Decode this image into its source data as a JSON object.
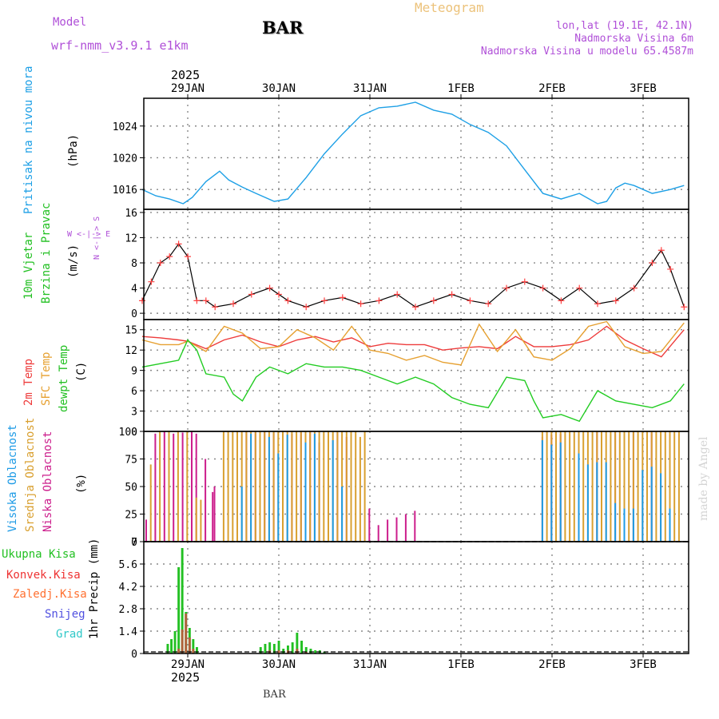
{
  "header": {
    "model_label": "Model",
    "model_name": "wrf-nmm_v3.9.1 e1km",
    "station": "BAR",
    "title": "Meteogram",
    "coords": "lon,lat (19.1E, 42.1N)",
    "elevation": "Nadmorska Visina 6m",
    "model_elevation": "Nadmorska Visina u modelu 65.4587m"
  },
  "footer": {
    "station": "BAR",
    "watermark": "made by Angel"
  },
  "colors": {
    "pressure": "#1ea0e6",
    "temp": "#ee3b3b",
    "sfc": "#e6a030",
    "dewpt": "#22cc22",
    "high_cloud": "#1e9be6",
    "mid_cloud": "#d9a030",
    "low_cloud": "#cc1e8c",
    "rain": "#22c022",
    "conv": "#ee3333",
    "snow": "#5050e0",
    "graupel": "#30c8c8",
    "wind_speed": "#ff4040"
  },
  "x_axis": {
    "top_year": "2025",
    "bottom_year": "2025",
    "dates": [
      "29JAN",
      "30JAN",
      "31JAN",
      "1FEB",
      "2FEB",
      "3FEB"
    ]
  },
  "panels": {
    "pressure": {
      "ylabel": "Pritisak na nivou mora",
      "unit": "(hPa)"
    },
    "wind": {
      "ylabel1": "10m Vjetar",
      "ylabel2": "Brzina i Pravac",
      "unit": "(m/s)",
      "compass": "W  <-|->  E",
      "compass_ns": "N  <-|->  S"
    },
    "temp": {
      "label1": "2m Temp",
      "label2": "SFC Temp",
      "label3": "dewpt Temp",
      "unit": "(C)"
    },
    "cloud": {
      "label1": "Visoka Oblacnost",
      "label2": "Srednja Oblacnost",
      "label3": "Niska Oblacnost",
      "unit": "(%)"
    },
    "precip": {
      "ylabel": "1hr Precip (mm)",
      "legend": [
        "Ukupna Kisa",
        "Konvek.Kisa",
        "Zaledj.Kisa",
        "Snijeg",
        "Grad"
      ]
    }
  },
  "chart_data": [
    {
      "type": "line",
      "title": "",
      "ylabel": "Pritisak na nivou mora (hPa)",
      "ylim": [
        1013.5,
        1027.5
      ],
      "yticks": [
        1016,
        1020,
        1024
      ],
      "x_unit": "days since 29JAN 00UTC",
      "series": [
        {
          "name": "Pritisak na nivou mora",
          "x": [
            -0.5,
            -0.35,
            -0.2,
            -0.05,
            0.05,
            0.2,
            0.35,
            0.45,
            0.6,
            0.75,
            0.95,
            1.1,
            1.3,
            1.5,
            1.7,
            1.9,
            2.1,
            2.3,
            2.5,
            2.7,
            2.9,
            3.1,
            3.3,
            3.5,
            3.7,
            3.9,
            4.1,
            4.3,
            4.5,
            4.6,
            4.7,
            4.8,
            4.9,
            5.0,
            5.1,
            5.3,
            5.45
          ],
          "y": [
            1016.0,
            1015.2,
            1014.8,
            1014.2,
            1015.0,
            1017.0,
            1018.3,
            1017.2,
            1016.3,
            1015.5,
            1014.5,
            1014.8,
            1017.5,
            1020.5,
            1023.0,
            1025.3,
            1026.3,
            1026.5,
            1027.0,
            1026.0,
            1025.5,
            1024.2,
            1023.2,
            1021.5,
            1018.5,
            1015.5,
            1014.8,
            1015.5,
            1014.2,
            1014.5,
            1016.2,
            1016.8,
            1016.5,
            1016.0,
            1015.5,
            1016.0,
            1016.5
          ]
        }
      ]
    },
    {
      "type": "line",
      "title": "",
      "ylabel": "10m Vjetar Brzina i Pravac (m/s)",
      "ylim": [
        -1,
        16.5
      ],
      "yticks": [
        0,
        4,
        8,
        12,
        16
      ],
      "x_unit": "days since 29JAN 00UTC",
      "series": [
        {
          "name": "speed",
          "x": [
            -0.5,
            -0.4,
            -0.3,
            -0.2,
            -0.1,
            0.0,
            0.1,
            0.2,
            0.3,
            0.5,
            0.7,
            0.9,
            1.0,
            1.1,
            1.3,
            1.5,
            1.7,
            1.9,
            2.1,
            2.3,
            2.5,
            2.7,
            2.9,
            3.1,
            3.3,
            3.5,
            3.7,
            3.9,
            4.1,
            4.3,
            4.5,
            4.7,
            4.9,
            5.1,
            5.2,
            5.3,
            5.45
          ],
          "y": [
            2,
            5,
            8,
            9,
            11,
            9,
            2,
            2,
            1,
            1.5,
            3,
            4,
            3,
            2,
            1,
            2,
            2.5,
            1.5,
            2,
            3,
            1,
            2,
            3,
            2,
            1.5,
            4,
            5,
            4,
            2,
            4,
            1.5,
            2,
            4,
            8,
            10,
            7,
            1
          ]
        }
      ]
    },
    {
      "type": "line",
      "title": "",
      "ylabel": "(C)",
      "ylim": [
        0,
        16.5
      ],
      "yticks": [
        0,
        3,
        6,
        9,
        12,
        15
      ],
      "x_unit": "days since 29JAN 00UTC",
      "series": [
        {
          "name": "2m Temp",
          "x": [
            -0.5,
            -0.3,
            -0.1,
            0.0,
            0.2,
            0.4,
            0.6,
            0.8,
            1.0,
            1.2,
            1.4,
            1.6,
            1.8,
            2.0,
            2.2,
            2.4,
            2.6,
            2.8,
            3.0,
            3.2,
            3.4,
            3.6,
            3.8,
            4.0,
            4.2,
            4.4,
            4.6,
            4.8,
            5.0,
            5.2,
            5.45
          ],
          "y": [
            14,
            13.8,
            13.5,
            13.3,
            12.2,
            13.5,
            14.2,
            13.2,
            12.5,
            13.5,
            14,
            13.2,
            13.8,
            12.5,
            13,
            12.8,
            12.8,
            12,
            12.3,
            12.5,
            12.2,
            14,
            12.5,
            12.5,
            12.8,
            13.5,
            15.5,
            13.5,
            12.2,
            11,
            15
          ]
        },
        {
          "name": "SFC Temp",
          "x": [
            -0.5,
            -0.3,
            -0.1,
            0.0,
            0.2,
            0.4,
            0.6,
            0.8,
            1.0,
            1.2,
            1.4,
            1.6,
            1.8,
            2.0,
            2.2,
            2.4,
            2.6,
            2.8,
            3.0,
            3.2,
            3.4,
            3.6,
            3.8,
            4.0,
            4.2,
            4.4,
            4.6,
            4.8,
            5.0,
            5.2,
            5.45
          ],
          "y": [
            13.5,
            12.8,
            12.8,
            13.3,
            11.8,
            15.5,
            14.5,
            12.2,
            12.5,
            15.0,
            13.8,
            12.0,
            15.5,
            12.0,
            11.5,
            10.5,
            11.2,
            10.2,
            9.8,
            15.8,
            11.8,
            15.0,
            11.0,
            10.5,
            12.2,
            15.5,
            16.2,
            12.5,
            11.5,
            11.8,
            16.0
          ]
        },
        {
          "name": "dewpt Temp",
          "x": [
            -0.5,
            -0.3,
            -0.1,
            0.0,
            0.1,
            0.2,
            0.4,
            0.5,
            0.6,
            0.75,
            0.9,
            1.1,
            1.3,
            1.5,
            1.7,
            1.9,
            2.1,
            2.3,
            2.5,
            2.7,
            2.9,
            3.1,
            3.3,
            3.5,
            3.7,
            3.8,
            3.9,
            4.1,
            4.3,
            4.5,
            4.7,
            4.9,
            5.1,
            5.3,
            5.45
          ],
          "y": [
            9.5,
            10,
            10.5,
            13.5,
            12,
            8.5,
            8,
            5.5,
            4.5,
            8,
            9.5,
            8.5,
            10,
            9.5,
            9.5,
            9,
            8,
            7,
            8,
            7,
            5,
            4,
            3.5,
            8,
            7.5,
            4.5,
            2,
            2.5,
            1.5,
            6,
            4.5,
            4,
            3.5,
            4.5,
            7
          ]
        }
      ]
    },
    {
      "type": "bar",
      "title": "",
      "ylabel": "(%)",
      "ylim": [
        0,
        100
      ],
      "yticks": [
        0,
        25,
        50,
        75,
        100
      ],
      "x_unit": "days since 29JAN 00UTC",
      "bar_width_days": 0.03,
      "series": [
        {
          "name": "Niska Oblacnost",
          "x": [
            -0.45,
            -0.35,
            -0.25,
            -0.15,
            -0.05,
            0.05,
            0.1,
            0.2,
            0.28,
            0.3,
            0.55,
            0.65,
            0.75,
            0.85,
            0.95,
            1.05,
            1.15,
            1.25,
            1.35,
            1.45,
            1.55,
            1.65,
            1.75,
            2.0,
            2.1,
            2.2,
            2.3,
            2.4,
            2.5,
            3.9,
            4.0,
            4.1,
            4.3,
            4.5,
            4.7,
            4.9,
            5.1,
            5.3
          ],
          "y": [
            20,
            98,
            100,
            98,
            99,
            100,
            98,
            75,
            45,
            50,
            99,
            100,
            99,
            100,
            99,
            100,
            98,
            99,
            100,
            90,
            98,
            99,
            95,
            30,
            15,
            20,
            22,
            25,
            28,
            95,
            97,
            98,
            99,
            100,
            100,
            100,
            99,
            95
          ]
        },
        {
          "name": "Srednja Oblacnost",
          "x": [
            -0.4,
            -0.3,
            -0.2,
            -0.1,
            0.0,
            0.1,
            0.15,
            0.4,
            0.45,
            0.5,
            0.55,
            0.6,
            0.65,
            0.7,
            0.75,
            0.8,
            0.85,
            0.9,
            0.95,
            1.0,
            1.05,
            1.1,
            1.15,
            1.2,
            1.25,
            1.3,
            1.35,
            1.4,
            1.45,
            1.5,
            1.55,
            1.6,
            1.65,
            1.7,
            1.75,
            1.8,
            1.85,
            1.9,
            1.95,
            3.9,
            3.95,
            4.0,
            4.05,
            4.1,
            4.15,
            4.2,
            4.25,
            4.3,
            4.35,
            4.4,
            4.45,
            4.5,
            4.55,
            4.6,
            4.65,
            4.7,
            4.75,
            4.8,
            4.85,
            4.9,
            4.95,
            5.0,
            5.05,
            5.1,
            5.15,
            5.2,
            5.25,
            5.3,
            5.35,
            5.4
          ],
          "y": [
            70,
            100,
            100,
            100,
            100,
            40,
            38,
            100,
            100,
            100,
            100,
            100,
            100,
            100,
            100,
            100,
            100,
            100,
            100,
            100,
            100,
            100,
            100,
            100,
            100,
            100,
            100,
            100,
            100,
            100,
            100,
            100,
            100,
            100,
            100,
            100,
            100,
            95,
            100,
            100,
            100,
            100,
            100,
            100,
            100,
            100,
            100,
            100,
            100,
            100,
            100,
            100,
            100,
            100,
            100,
            100,
            100,
            100,
            100,
            100,
            100,
            100,
            100,
            100,
            100,
            100,
            100,
            100,
            100,
            100
          ]
        },
        {
          "name": "Visoka Oblacnost",
          "x": [
            0.6,
            0.7,
            0.9,
            1.0,
            1.1,
            1.3,
            1.4,
            1.6,
            1.7,
            3.9,
            4.0,
            4.1,
            4.3,
            4.4,
            4.5,
            4.6,
            4.7,
            4.8,
            4.9,
            5.0,
            5.1,
            5.2,
            5.3
          ],
          "y": [
            50,
            98,
            95,
            80,
            97,
            90,
            98,
            92,
            50,
            92,
            88,
            90,
            80,
            70,
            72,
            72,
            35,
            30,
            30,
            65,
            68,
            62,
            30
          ]
        }
      ]
    },
    {
      "type": "bar",
      "title": "",
      "ylabel": "1hr Precip (mm)",
      "ylim": [
        0,
        7
      ],
      "yticks": [
        0,
        1.4,
        2.8,
        4.2,
        5.6,
        7
      ],
      "x_unit": "days since 29JAN 00UTC",
      "bar_width_days": 0.025,
      "series": [
        {
          "name": "Ukupna Kisa",
          "x": [
            -0.22,
            -0.18,
            -0.14,
            -0.1,
            -0.06,
            -0.02,
            0.02,
            0.06,
            0.1,
            0.8,
            0.85,
            0.9,
            0.95,
            1.0,
            1.05,
            1.1,
            1.15,
            1.2,
            1.25,
            1.3,
            1.35,
            1.4,
            1.45,
            1.5
          ],
          "y": [
            0.6,
            0.9,
            1.4,
            5.4,
            6.6,
            2.6,
            1.6,
            0.9,
            0.4,
            0.4,
            0.6,
            0.7,
            0.6,
            0.8,
            0.3,
            0.5,
            0.7,
            1.3,
            0.8,
            0.4,
            0.3,
            0.2,
            0.2,
            0.1
          ]
        },
        {
          "name": "Konvek.Kisa",
          "x": [
            -0.1,
            -0.06,
            -0.02,
            0.02,
            0.06,
            0.9,
            1.0,
            1.1,
            1.2,
            1.3
          ],
          "y": [
            0.3,
            1.5,
            2.5,
            1.0,
            0.3,
            0.2,
            0.2,
            0.2,
            0.3,
            0.1
          ]
        }
      ]
    }
  ]
}
